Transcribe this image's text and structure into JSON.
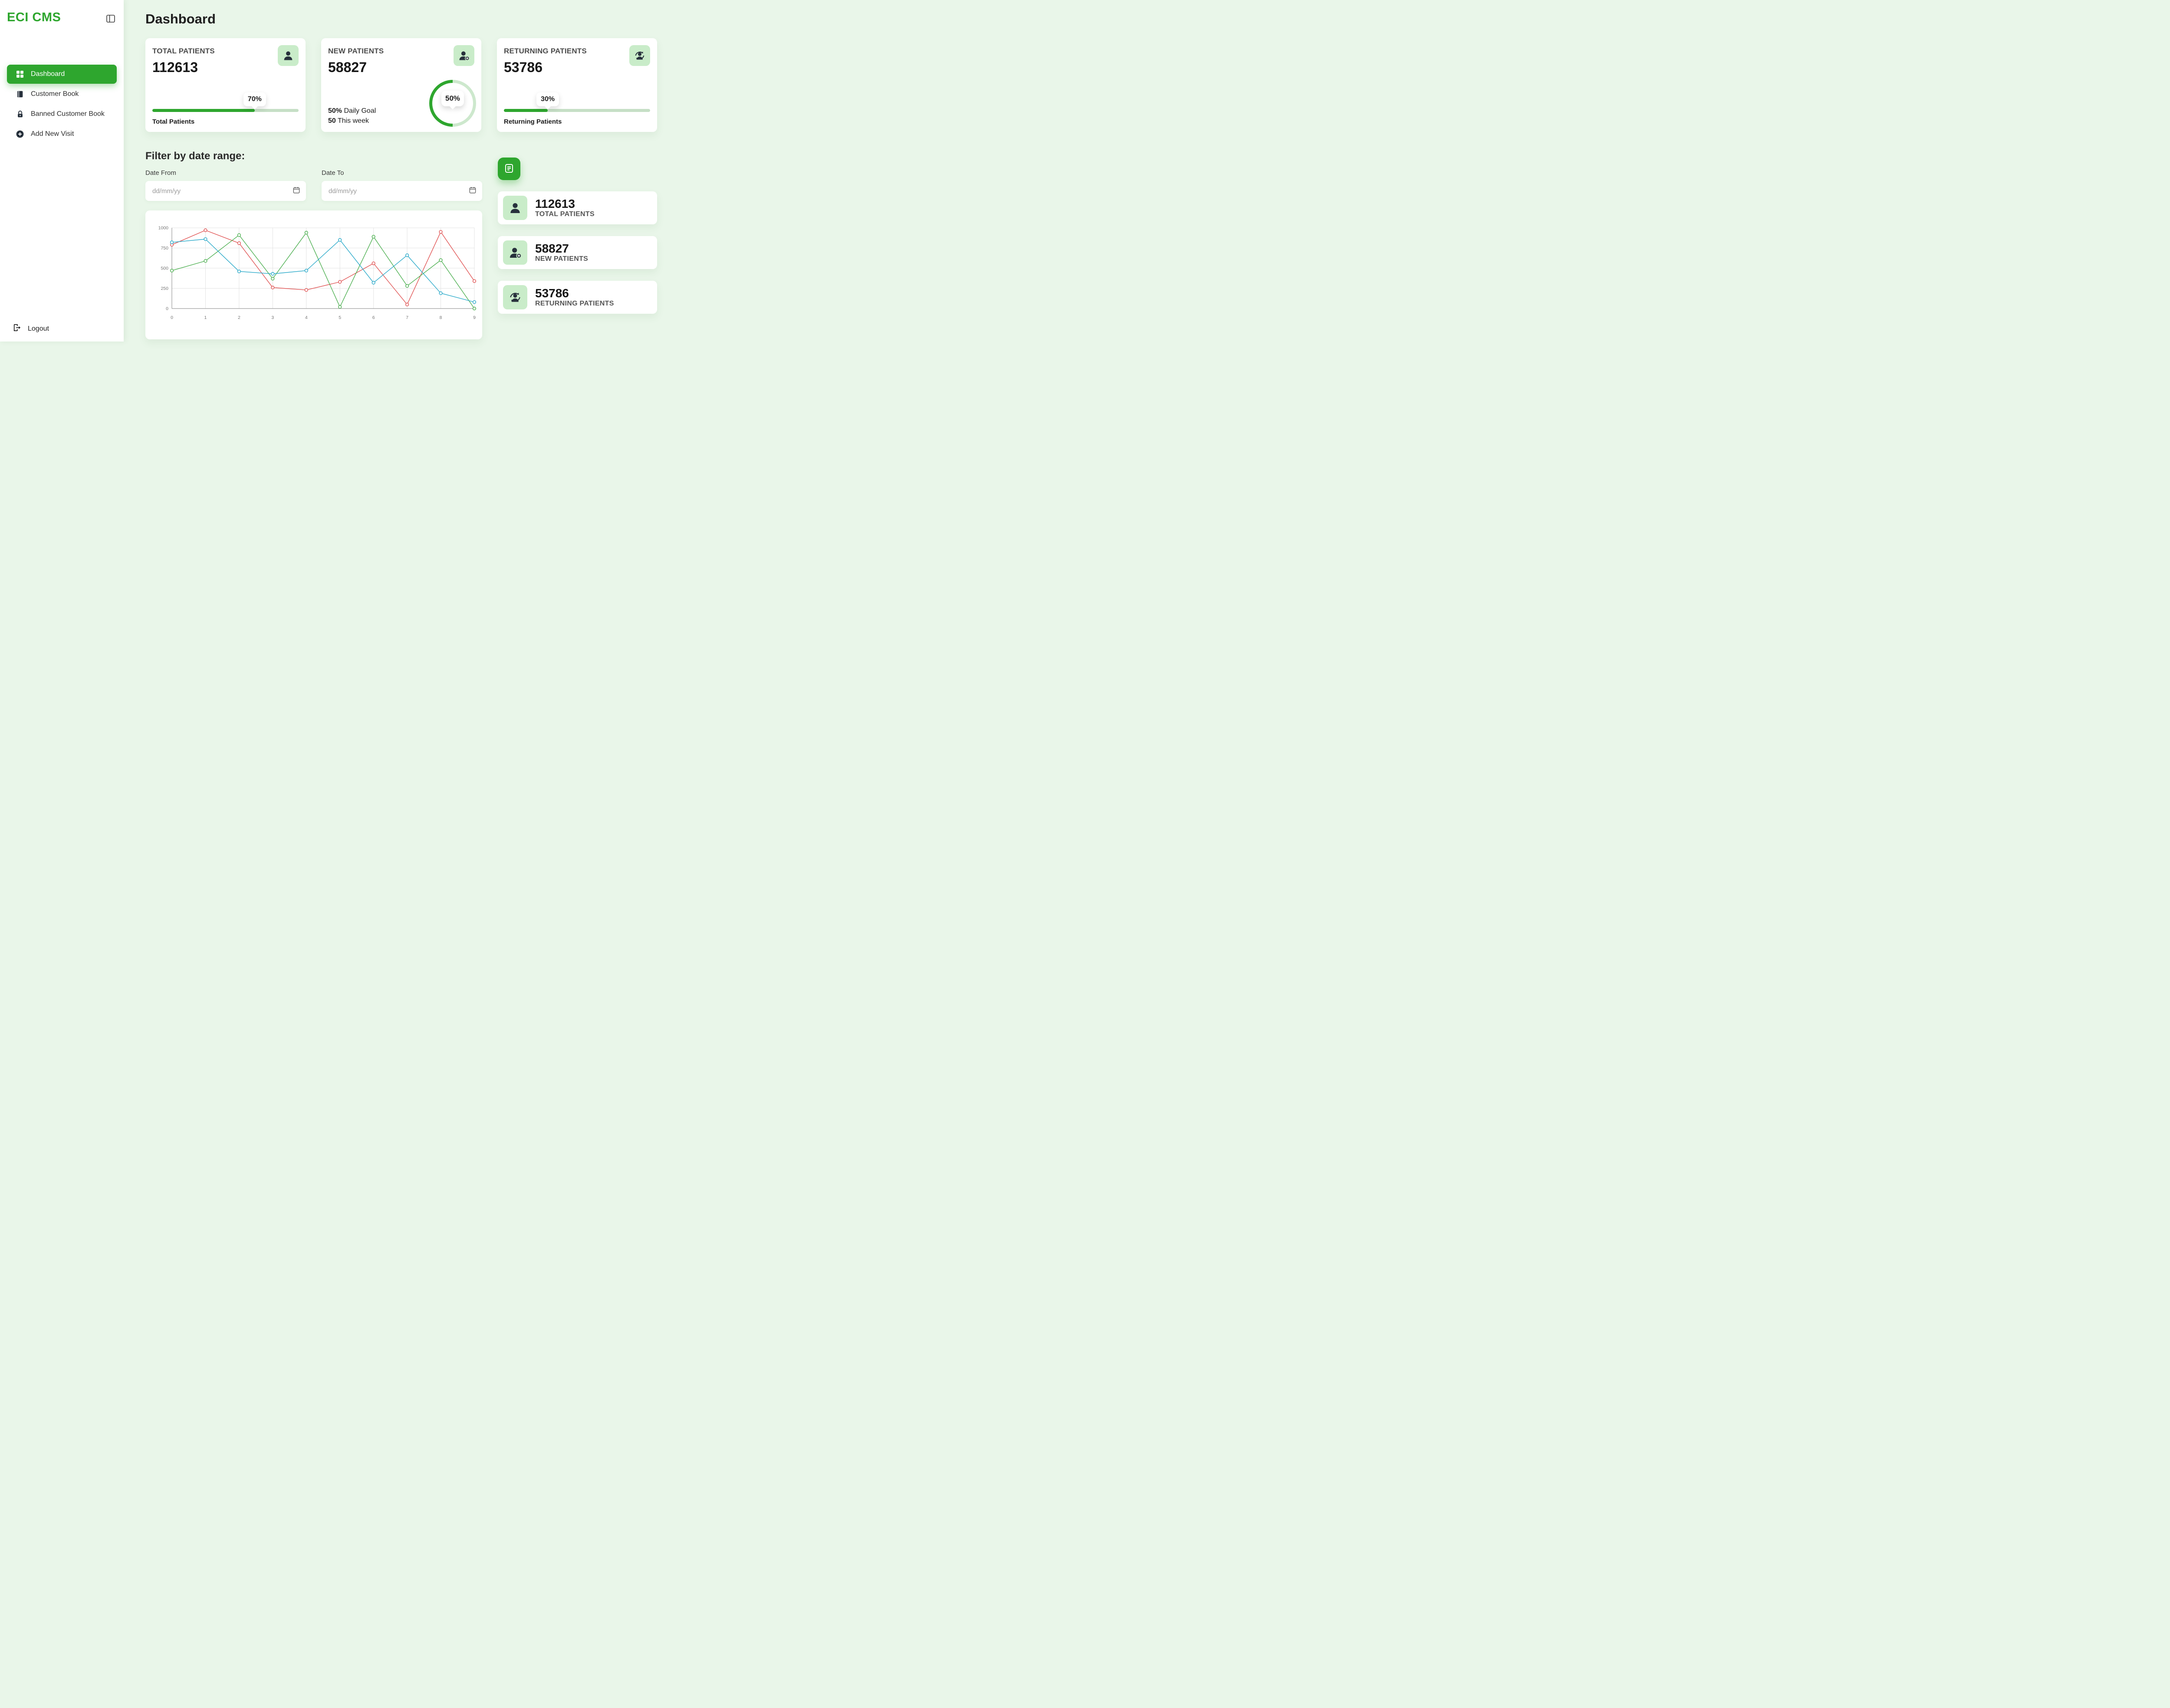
{
  "app": {
    "title": "ECI CMS"
  },
  "colors": {
    "accent": "#2ea62e",
    "accent_light": "#c9ecc9",
    "page_background": "#e9f6e9",
    "bar_track": "#c6dfc6",
    "ring_track": "#cde8cd"
  },
  "sidebar": {
    "items": [
      {
        "label": "Dashboard",
        "icon": "grid-icon",
        "active": true
      },
      {
        "label": "Customer Book",
        "icon": "book-icon",
        "active": false
      },
      {
        "label": "Banned Customer Book",
        "icon": "lock-icon",
        "active": false
      },
      {
        "label": "Add New Visit",
        "icon": "plus-circle-icon",
        "active": false
      }
    ],
    "logout_label": "Logout"
  },
  "header": {
    "title": "Dashboard"
  },
  "stats": {
    "total": {
      "title": "TOTAL PATIENTS",
      "value": "112613",
      "icon": "patient-icon",
      "progress": 70,
      "progress_label": "70%",
      "caption": "Total Patients"
    },
    "new": {
      "title": "NEW PATIENTS",
      "value": "58827",
      "icon": "patient-add-icon",
      "progress": 50,
      "progress_label": "50%",
      "line1": {
        "bold": "50%",
        "text": " Daily Goal"
      },
      "line2": {
        "bold": "50",
        "text": " This week"
      }
    },
    "returning": {
      "title": "RETURNING PATIENTS",
      "value": "53786",
      "icon": "patient-return-icon",
      "progress": 30,
      "progress_label": "30%",
      "caption": "Returning Patients"
    }
  },
  "filter": {
    "heading": "Filter by date range:",
    "date_from_label": "Date From",
    "date_to_label": "Date To",
    "placeholder": "dd/mm/yy"
  },
  "summary_cards": [
    {
      "value": "112613",
      "label": "TOTAL PATIENTS",
      "icon": "patient-icon"
    },
    {
      "value": "58827",
      "label": "NEW PATIENTS",
      "icon": "patient-add-icon"
    },
    {
      "value": "53786",
      "label": "RETURNING PATIENTS",
      "icon": "patient-return-icon"
    }
  ],
  "chart_data": {
    "type": "line",
    "x": [
      0,
      1,
      2,
      3,
      4,
      5,
      6,
      7,
      8,
      9
    ],
    "series": [
      {
        "name": "red-series",
        "color": "#e05252",
        "values": [
          790,
          970,
          810,
          260,
          230,
          330,
          560,
          50,
          950,
          340
        ]
      },
      {
        "name": "green-series",
        "color": "#4caf50",
        "values": [
          470,
          590,
          910,
          370,
          940,
          20,
          890,
          280,
          600,
          0
        ]
      },
      {
        "name": "blue-series",
        "color": "#29a9c9",
        "values": [
          820,
          860,
          460,
          430,
          470,
          850,
          320,
          660,
          190,
          80
        ]
      }
    ],
    "ylim": [
      0,
      1000
    ],
    "yticks": [
      0,
      250,
      500,
      750,
      1000
    ],
    "xticks": [
      0,
      1,
      2,
      3,
      4,
      5,
      6,
      7,
      8,
      9
    ],
    "grid": true,
    "legend": "none",
    "title": "",
    "xlabel": "",
    "ylabel": ""
  }
}
